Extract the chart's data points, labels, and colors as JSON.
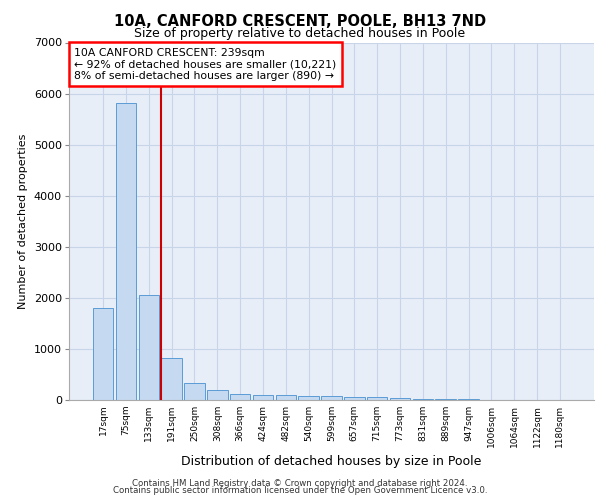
{
  "title1": "10A, CANFORD CRESCENT, POOLE, BH13 7ND",
  "title2": "Size of property relative to detached houses in Poole",
  "xlabel": "Distribution of detached houses by size in Poole",
  "ylabel": "Number of detached properties",
  "bin_labels": [
    "17sqm",
    "75sqm",
    "133sqm",
    "191sqm",
    "250sqm",
    "308sqm",
    "366sqm",
    "424sqm",
    "482sqm",
    "540sqm",
    "599sqm",
    "657sqm",
    "715sqm",
    "773sqm",
    "831sqm",
    "889sqm",
    "947sqm",
    "1006sqm",
    "1064sqm",
    "1122sqm",
    "1180sqm"
  ],
  "bar_values": [
    1800,
    5820,
    2060,
    820,
    340,
    200,
    120,
    100,
    90,
    70,
    70,
    50,
    50,
    30,
    20,
    15,
    10,
    8,
    5,
    3,
    2
  ],
  "bar_color": "#c5d9f0",
  "bar_edge_color": "#5b9bd5",
  "grid_color": "#c8d4e8",
  "background_color": "#e8eef8",
  "red_line_x": 2.55,
  "annotation_text": "10A CANFORD CRESCENT: 239sqm\n← 92% of detached houses are smaller (10,221)\n8% of semi-detached houses are larger (890) →",
  "annotation_box_color": "white",
  "annotation_box_edge": "red",
  "footer1": "Contains HM Land Registry data © Crown copyright and database right 2024.",
  "footer2": "Contains public sector information licensed under the Open Government Licence v3.0.",
  "ylim": [
    0,
    7000
  ],
  "yticks": [
    0,
    1000,
    2000,
    3000,
    4000,
    5000,
    6000,
    7000
  ]
}
